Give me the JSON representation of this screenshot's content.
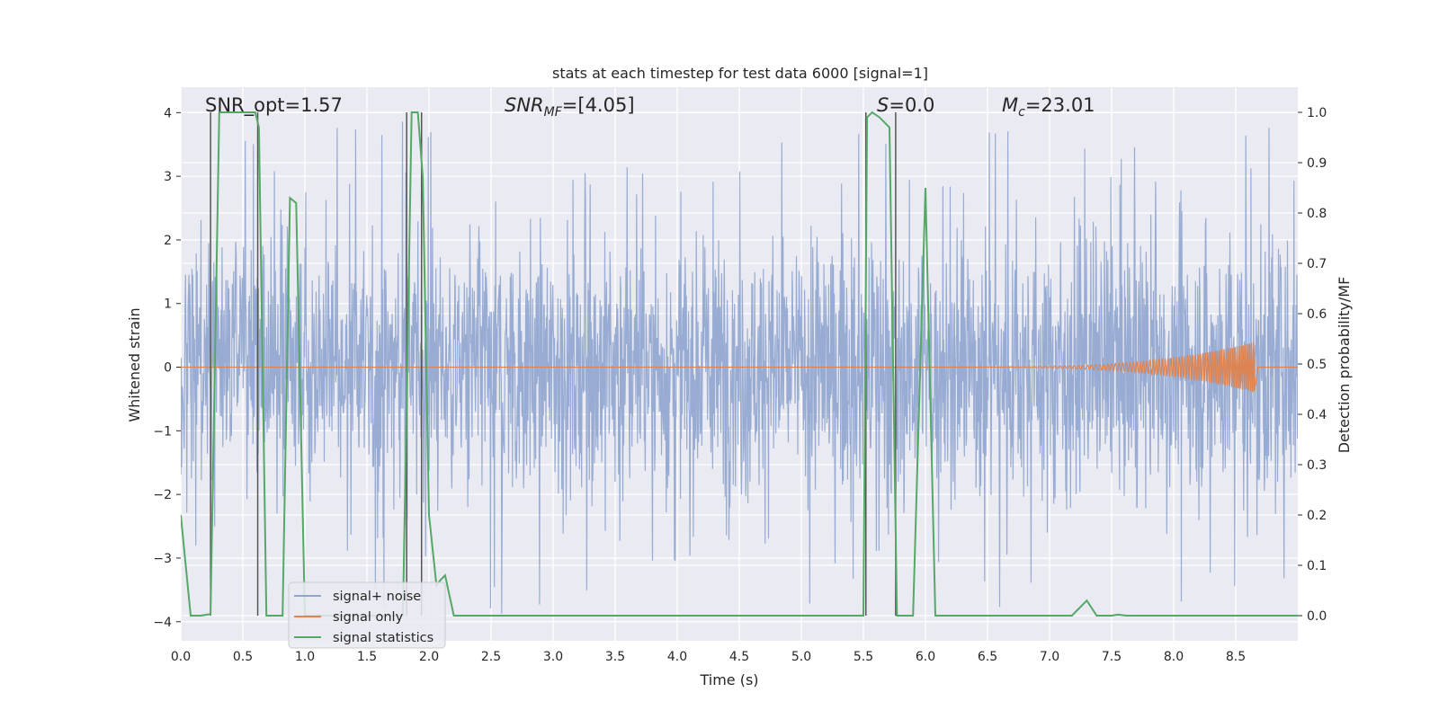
{
  "chart_data": {
    "type": "line",
    "title": "stats at each timestep for test data 6000 [signal=1]",
    "xlabel": "Time (s)",
    "ylabel_left": "Whitened strain",
    "ylabel_right": "Detection probability/MF",
    "xlim": [
      0.0,
      9.0
    ],
    "ylim_left": [
      -4.3,
      4.4
    ],
    "ylim_right": [
      -0.05,
      1.05
    ],
    "x_ticks": [
      "0.0",
      "0.5",
      "1.0",
      "1.5",
      "2.0",
      "2.5",
      "3.0",
      "3.5",
      "4.0",
      "4.5",
      "5.0",
      "5.5",
      "6.0",
      "6.5",
      "7.0",
      "7.5",
      "8.0",
      "8.5"
    ],
    "y_ticks_left": [
      "−4",
      "−3",
      "−2",
      "−1",
      "0",
      "1",
      "2",
      "3",
      "4"
    ],
    "y_ticks_right": [
      "0.0",
      "0.1",
      "0.2",
      "0.3",
      "0.4",
      "0.5",
      "0.6",
      "0.7",
      "0.8",
      "0.9",
      "1.0"
    ],
    "grid": true,
    "annotations": [
      {
        "id": "snr-opt",
        "text": "SNR_opt=1.57"
      },
      {
        "id": "snr-mf",
        "base": "SNR",
        "sub": "MF",
        "rest": "=[4.05]"
      },
      {
        "id": "s",
        "base": "S",
        "rest": "=0.0"
      },
      {
        "id": "mc",
        "base": "M",
        "sub": "c",
        "rest": "=23.01"
      }
    ],
    "legend": {
      "position": "lower-left",
      "entries": [
        "signal+ noise",
        "signal only",
        "signal statistics"
      ]
    },
    "colors": {
      "noise": "#8fa5cf",
      "signal": "#dd8452",
      "stats": "#55a868",
      "vlines": "#555555",
      "axes_bg": "#eaeaf2",
      "grid": "#ffffff"
    },
    "series": [
      {
        "name": "signal+ noise",
        "axis": "left",
        "description": "whitened noisy strain, amplitude mostly within ±2.5, occasional peaks to ±3.9",
        "envelope_typical": 2.0,
        "envelope_peak": 3.9
      },
      {
        "name": "signal only",
        "axis": "left",
        "chirp_start": 6.0,
        "chirp_peak_time": 8.65,
        "chirp_peak_amplitude": 0.4
      },
      {
        "name": "signal statistics",
        "axis": "right",
        "x": [
          0.0,
          0.08,
          0.16,
          0.24,
          0.31,
          0.6,
          0.63,
          0.69,
          0.76,
          0.82,
          0.88,
          0.93,
          1.0,
          1.77,
          1.79,
          1.86,
          1.91,
          1.95,
          2.0,
          2.06,
          2.09,
          2.13,
          2.2,
          2.3,
          5.5,
          5.53,
          5.57,
          5.63,
          5.71,
          5.77,
          5.79,
          5.86,
          5.9,
          6.0,
          6.08,
          6.2,
          7.18,
          7.3,
          7.38,
          7.5,
          7.55,
          7.62,
          9.0
        ],
        "y": [
          0.2,
          0.0,
          0.0,
          0.003,
          1.0,
          1.0,
          0.97,
          0.0,
          0.0,
          0.0,
          0.83,
          0.82,
          0.0,
          0.0,
          0.0,
          1.0,
          1.0,
          0.87,
          0.2,
          0.06,
          0.07,
          0.08,
          0.0,
          0.0,
          0.0,
          0.99,
          1.0,
          0.99,
          0.97,
          0.0,
          0.0,
          0.0,
          0.0,
          0.85,
          0.0,
          0.0,
          0.0,
          0.03,
          0.0,
          0.0,
          0.002,
          0.0,
          0.0
        ]
      },
      {
        "name": "matched-filter markers",
        "axis": "right",
        "x": [
          0.24,
          0.62,
          1.82,
          1.94,
          5.52,
          5.76
        ],
        "y_top": 1.0,
        "y_bottom": 0.0
      }
    ]
  }
}
